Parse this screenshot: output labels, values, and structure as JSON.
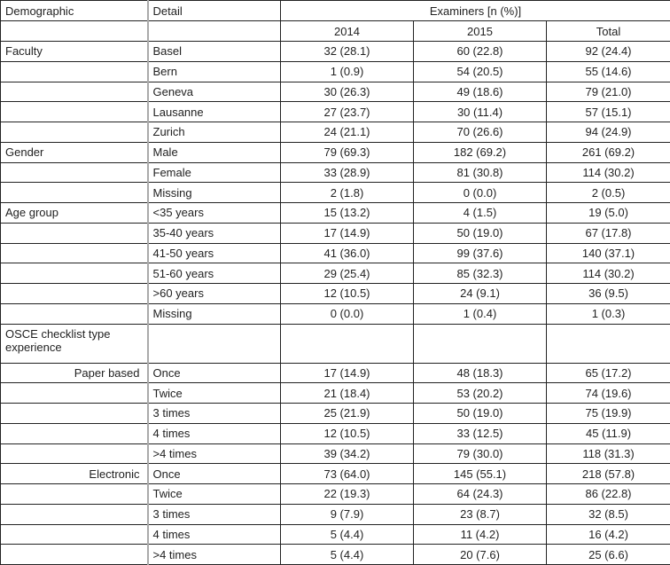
{
  "header": {
    "demographic": "Demographic",
    "detail": "Detail",
    "examiners": "Examiners [n (%)]",
    "years": [
      "2014",
      "2015",
      "Total"
    ]
  },
  "rows": [
    {
      "group": "Faculty",
      "detail": "Basel",
      "v2014": "32 (28.1)",
      "v2015": "60 (22.8)",
      "total": "92 (24.4)"
    },
    {
      "group": "",
      "detail": "Bern",
      "v2014": "1 (0.9)",
      "v2015": "54 (20.5)",
      "total": "55 (14.6)"
    },
    {
      "group": "",
      "detail": "Geneva",
      "v2014": "30 (26.3)",
      "v2015": "49 (18.6)",
      "total": "79 (21.0)"
    },
    {
      "group": "",
      "detail": "Lausanne",
      "v2014": "27 (23.7)",
      "v2015": "30 (11.4)",
      "total": "57 (15.1)"
    },
    {
      "group": "",
      "detail": "Zurich",
      "v2014": "24 (21.1)",
      "v2015": "70 (26.6)",
      "total": "94 (24.9)"
    },
    {
      "group": "Gender",
      "detail": "Male",
      "v2014": "79 (69.3)",
      "v2015": "182 (69.2)",
      "total": "261 (69.2)"
    },
    {
      "group": "",
      "detail": "Female",
      "v2014": "33 (28.9)",
      "v2015": "81 (30.8)",
      "total": "114 (30.2)"
    },
    {
      "group": "",
      "detail": "Missing",
      "v2014": "2 (1.8)",
      "v2015": "0 (0.0)",
      "total": "2 (0.5)"
    },
    {
      "group": "Age group",
      "detail": "<35 years",
      "v2014": "15 (13.2)",
      "v2015": "4 (1.5)",
      "total": "19 (5.0)"
    },
    {
      "group": "",
      "detail": "35-40 years",
      "v2014": "17 (14.9)",
      "v2015": "50 (19.0)",
      "total": "67 (17.8)"
    },
    {
      "group": "",
      "detail": "41-50 years",
      "v2014": "41 (36.0)",
      "v2015": "99 (37.6)",
      "total": "140 (37.1)"
    },
    {
      "group": "",
      "detail": "51-60 years",
      "v2014": "29 (25.4)",
      "v2015": "85 (32.3)",
      "total": "114 (30.2)"
    },
    {
      "group": "",
      "detail": ">60 years",
      "v2014": "12 (10.5)",
      "v2015": "24 (9.1)",
      "total": "36 (9.5)"
    },
    {
      "group": "",
      "detail": "Missing",
      "v2014": "0 (0.0)",
      "v2015": "1 (0.4)",
      "total": "1 (0.3)"
    },
    {
      "group": "OSCE checklist type experience",
      "detail": "",
      "v2014": "",
      "v2015": "",
      "total": "",
      "tall": true
    },
    {
      "group": "Paper based",
      "sub": true,
      "detail": "Once",
      "v2014": "17 (14.9)",
      "v2015": "48 (18.3)",
      "total": "65 (17.2)"
    },
    {
      "group": "",
      "detail": "Twice",
      "v2014": "21 (18.4)",
      "v2015": "53 (20.2)",
      "total": "74 (19.6)"
    },
    {
      "group": "",
      "detail": "3 times",
      "v2014": "25 (21.9)",
      "v2015": "50 (19.0)",
      "total": "75 (19.9)"
    },
    {
      "group": "",
      "detail": "4 times",
      "v2014": "12 (10.5)",
      "v2015": "33 (12.5)",
      "total": "45 (11.9)"
    },
    {
      "group": "",
      "detail": ">4 times",
      "v2014": "39 (34.2)",
      "v2015": "79 (30.0)",
      "total": "118 (31.3)"
    },
    {
      "group": "Electronic",
      "sub": true,
      "detail": "Once",
      "v2014": "73 (64.0)",
      "v2015": "145 (55.1)",
      "total": "218 (57.8)"
    },
    {
      "group": "",
      "detail": "Twice",
      "v2014": "22 (19.3)",
      "v2015": "64 (24.3)",
      "total": "86 (22.8)"
    },
    {
      "group": "",
      "detail": "3 times",
      "v2014": "9 (7.9)",
      "v2015": "23 (8.7)",
      "total": "32 (8.5)"
    },
    {
      "group": "",
      "detail": "4 times",
      "v2014": "5 (4.4)",
      "v2015": "11 (4.2)",
      "total": "16 (4.2)"
    },
    {
      "group": "",
      "detail": ">4 times",
      "v2014": "5 (4.4)",
      "v2015": "20 (7.6)",
      "total": "25 (6.6)"
    }
  ]
}
